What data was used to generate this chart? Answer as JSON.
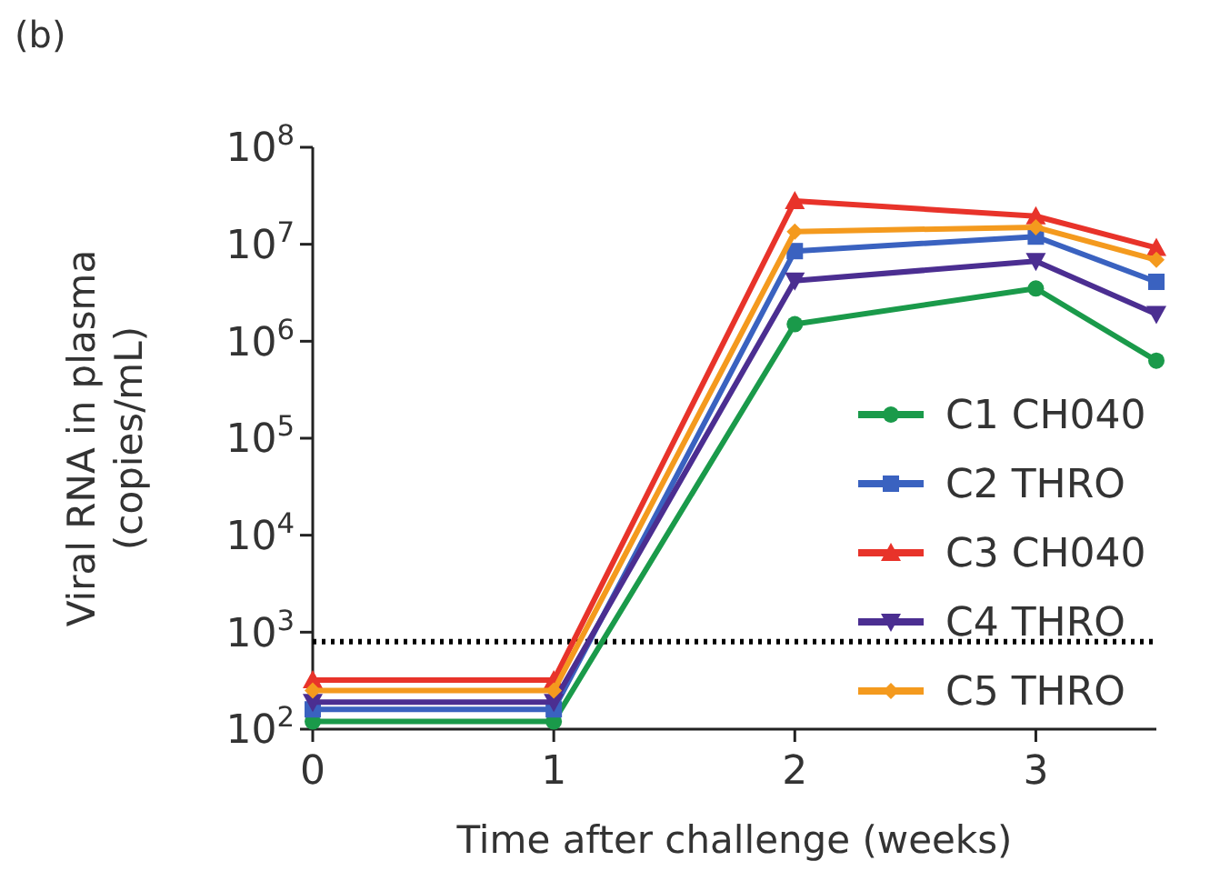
{
  "chart_data": {
    "type": "line",
    "title": "(b)",
    "xlabel": "Time after challenge (weeks)",
    "ylabel": "Viral RNA in plasma\n(copies/mL)",
    "x": [
      0,
      1,
      2,
      3,
      3.5
    ],
    "xlim": [
      0,
      3.5
    ],
    "xticks": [
      0,
      1,
      2,
      3
    ],
    "log": "y",
    "ylim": [
      100,
      100000000
    ],
    "yticks": [
      {
        "value": 100,
        "label": "10$^{2}$"
      },
      {
        "value": 1000,
        "label": "10$^{3}$"
      },
      {
        "value": 10000,
        "label": "10$^{4}$"
      },
      {
        "value": 100000,
        "label": "10$^{5}$"
      },
      {
        "value": 1000000,
        "label": "10$^{6}$"
      },
      {
        "value": 10000000,
        "label": "10$^{7}$"
      },
      {
        "value": 100000000,
        "label": "10$^{8}$"
      }
    ],
    "series": [
      {
        "name": "C1 CH040",
        "color": "#1a9a4a",
        "marker": "circle",
        "values": [
          120,
          120,
          1500000,
          3500000,
          630000
        ]
      },
      {
        "name": "C2 THRO",
        "color": "#3a62c0",
        "marker": "square",
        "values": [
          160,
          160,
          8500000,
          12000000,
          4100000
        ]
      },
      {
        "name": "C3 CH040",
        "color": "#e8332a",
        "marker": "triangle",
        "values": [
          320,
          320,
          28000000,
          19500000,
          9200000
        ]
      },
      {
        "name": "C4 THRO",
        "color": "#4b2e91",
        "marker": "triangle-down",
        "values": [
          190,
          190,
          4200000,
          6700000,
          1900000
        ]
      },
      {
        "name": "C5 THRO",
        "color": "#f49a1e",
        "marker": "diamond",
        "values": [
          250,
          250,
          13500000,
          15000000,
          6900000
        ]
      }
    ],
    "ref_lines": [
      {
        "axis": "y",
        "value": 800,
        "color": "#000000",
        "line_style": "dotted"
      }
    ],
    "legend": "right",
    "line_style": "solid",
    "grid": false
  }
}
